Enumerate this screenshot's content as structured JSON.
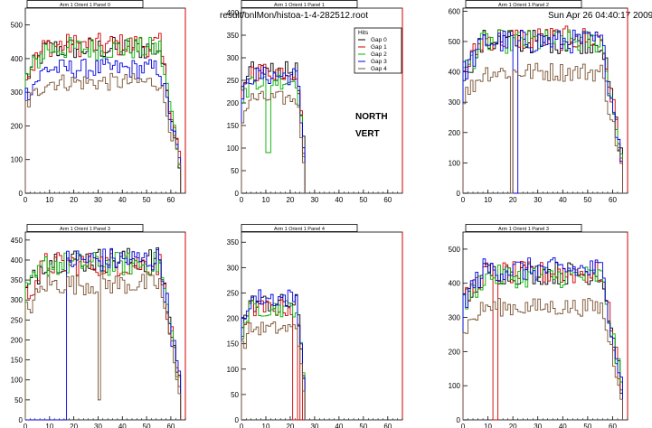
{
  "header": {
    "filename": "result/onlMon/histoa-1-4-282512.root",
    "datetime": "Sun Apr 26 04:40:17 2009"
  },
  "overlays": {
    "line1": "NORTH",
    "line2": "VERT"
  },
  "legend": {
    "title": "Hits",
    "entries": [
      {
        "name": "Gap 0",
        "color": "#000000"
      },
      {
        "name": "Gap 1",
        "color": "#d00000"
      },
      {
        "name": "Gap 2",
        "color": "#00b000"
      },
      {
        "name": "Gap 3",
        "color": "#0000e0"
      },
      {
        "name": "Gap 4",
        "color": "#7a5230"
      }
    ]
  },
  "series_colors": [
    "#000000",
    "#d00000",
    "#00b000",
    "#0000e0",
    "#7a5230"
  ],
  "chart_data": [
    {
      "type": "histogram",
      "title": "Arm 1 Orient 1 Panel 0",
      "xlim": [
        0,
        66
      ],
      "ylim": [
        0,
        550
      ],
      "xticks": [
        0,
        10,
        20,
        30,
        40,
        50,
        60
      ],
      "yticks": [
        0,
        100,
        200,
        300,
        400,
        500
      ],
      "profile": {
        "start": 0,
        "end": 64,
        "levels": [
          430,
          440,
          430,
          370
        ],
        "low": 330
      },
      "dropouts": []
    },
    {
      "type": "histogram",
      "title": "Arm 1 Orient 1 Panel 1",
      "xlim": [
        0,
        66
      ],
      "ylim": [
        0,
        410
      ],
      "xticks": [
        0,
        10,
        20,
        30,
        40,
        50,
        60
      ],
      "yticks": [
        0,
        50,
        100,
        150,
        200,
        250,
        300,
        350,
        400
      ],
      "profile": {
        "start": 0,
        "end": 26,
        "levels": [
          270,
          270,
          250,
          260
        ],
        "low": 210
      },
      "dropouts": [
        {
          "series": 2,
          "bins": [
            10,
            11
          ],
          "value": 90
        }
      ]
    },
    {
      "type": "histogram",
      "title": "Arm 1 Orient 1 Panel 2",
      "xlim": [
        0,
        66
      ],
      "ylim": [
        0,
        610
      ],
      "xticks": [
        0,
        10,
        20,
        30,
        40,
        50,
        60
      ],
      "yticks": [
        0,
        100,
        200,
        300,
        400,
        500,
        600
      ],
      "profile": {
        "start": 0,
        "end": 64,
        "levels": [
          500,
          510,
          500,
          500
        ],
        "low": 400
      },
      "dropouts": [
        {
          "series": 3,
          "bins": [
            20,
            21
          ],
          "value": 0
        },
        {
          "series": 4,
          "bins": [
            19
          ],
          "value": 0
        }
      ]
    },
    {
      "type": "histogram",
      "title": "Arm 1 Orient 1 Panel 3",
      "xlim": [
        0,
        66
      ],
      "ylim": [
        0,
        470
      ],
      "xticks": [
        0,
        10,
        20,
        30,
        40,
        50,
        60
      ],
      "yticks": [
        0,
        50,
        100,
        150,
        200,
        250,
        300,
        350,
        400,
        450
      ],
      "profile": {
        "start": 0,
        "end": 64,
        "levels": [
          400,
          390,
          390,
          400
        ],
        "low": 340
      },
      "dropouts": [
        {
          "series": 3,
          "bins": [
            0,
            1,
            2,
            3,
            4,
            5,
            6,
            7,
            8,
            9,
            10,
            11,
            12,
            13,
            14,
            15,
            16
          ],
          "value": 0
        },
        {
          "series": 4,
          "bins": [
            30
          ],
          "value": 50
        }
      ]
    },
    {
      "type": "histogram",
      "title": "Arm 1 Orient 1 Panel 4",
      "xlim": [
        0,
        66
      ],
      "ylim": [
        0,
        370
      ],
      "xticks": [
        0,
        10,
        20,
        30,
        40,
        50,
        60
      ],
      "yticks": [
        0,
        50,
        100,
        150,
        200,
        250,
        300,
        350
      ],
      "profile": {
        "start": 0,
        "end": 26,
        "levels": [
          230,
          220,
          220,
          240
        ],
        "low": 180
      },
      "dropouts": [
        {
          "series": 1,
          "bins": [
            21,
            22,
            24
          ],
          "value": 0
        }
      ]
    },
    {
      "type": "histogram",
      "title": "Arm 1 Orient 1 Panel 3",
      "xlim": [
        0,
        66
      ],
      "ylim": [
        0,
        550
      ],
      "xticks": [
        0,
        10,
        20,
        30,
        40,
        50,
        60
      ],
      "yticks": [
        0,
        100,
        200,
        300,
        400,
        500
      ],
      "profile": {
        "start": 0,
        "end": 64,
        "levels": [
          430,
          430,
          420,
          440
        ],
        "low": 330
      },
      "dropouts": [
        {
          "series": 1,
          "bins": [
            12,
            13
          ],
          "value": 0
        }
      ]
    }
  ]
}
